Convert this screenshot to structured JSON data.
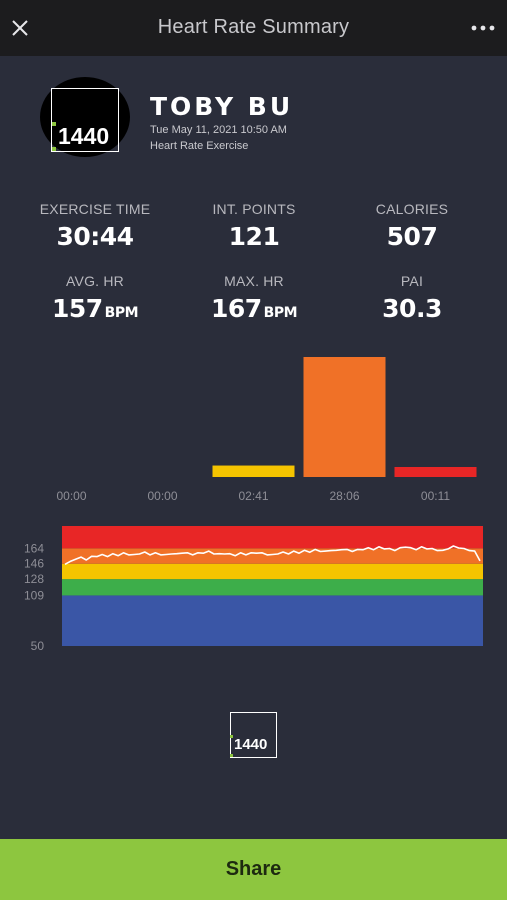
{
  "header": {
    "title": "Heart Rate Summary",
    "close_icon": "close-icon",
    "more_icon": "more-options-icon"
  },
  "brand": {
    "logo_text": "1440",
    "accent_color": "#8dc63f"
  },
  "profile": {
    "name": "TOBY BU",
    "datetime": "Tue May 11, 2021 10:50 AM",
    "activity": "Heart Rate Exercise"
  },
  "stats": {
    "exercise_time": {
      "label": "EXERCISE TIME",
      "value": "30:44"
    },
    "int_points": {
      "label": "INT. POINTS",
      "value": "121"
    },
    "calories": {
      "label": "CALORIES",
      "value": "507"
    },
    "avg_hr": {
      "label": "AVG. HR",
      "value": "157",
      "unit": "BPM"
    },
    "max_hr": {
      "label": "MAX. HR",
      "value": "167",
      "unit": "BPM"
    },
    "pai": {
      "label": "PAI",
      "value": "30.3"
    }
  },
  "chart_data": [
    {
      "type": "bar",
      "categories": [
        "00:00",
        "00:00",
        "02:41",
        "28:06",
        "00:11"
      ],
      "values": [
        0,
        0,
        161,
        1686,
        11
      ],
      "colors": [
        "#3a56a6",
        "#3dae4a",
        "#f5c400",
        "#f07127",
        "#e82626"
      ],
      "title": "",
      "xlabel": "",
      "ylabel": "",
      "grid": false
    },
    {
      "type": "line",
      "ylim": [
        50,
        190
      ],
      "zone_ticks": [
        50,
        109,
        128,
        146,
        164
      ],
      "zones": [
        {
          "from": 50,
          "to": 109,
          "color": "#3a56a6"
        },
        {
          "from": 109,
          "to": 128,
          "color": "#3dae4a"
        },
        {
          "from": 128,
          "to": 146,
          "color": "#f5c400"
        },
        {
          "from": 146,
          "to": 164,
          "color": "#f07127"
        },
        {
          "from": 164,
          "to": 190,
          "color": "#e82626"
        }
      ],
      "series": [
        {
          "values": [
            146,
            148,
            152,
            153,
            151,
            154,
            155,
            156,
            155,
            157,
            156,
            158,
            157,
            156,
            158,
            159,
            157,
            158,
            157,
            156,
            158,
            157,
            159,
            158,
            157,
            158,
            159,
            160,
            158,
            157,
            158,
            157,
            156,
            158,
            157,
            158,
            159,
            158,
            157,
            156,
            158,
            159,
            158,
            160,
            159,
            161,
            160,
            162,
            161,
            160,
            162,
            161,
            163,
            162,
            161,
            162,
            163,
            164,
            163,
            165,
            164,
            163,
            162,
            164,
            166,
            164,
            163,
            165,
            164,
            163,
            162,
            161,
            164,
            166,
            165,
            163,
            162,
            160,
            150
          ]
        }
      ],
      "grid": false
    }
  ],
  "share": {
    "label": "Share"
  }
}
